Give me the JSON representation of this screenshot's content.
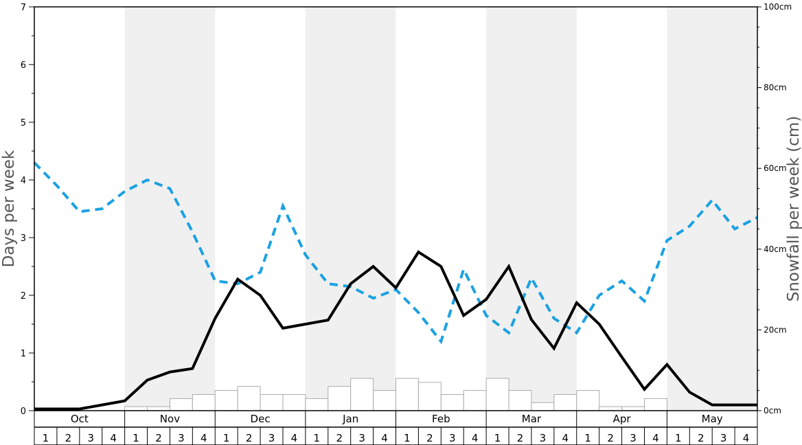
{
  "chart_data": {
    "type": "bar+line",
    "left_axis": {
      "label": "Days per week",
      "ylim": [
        0,
        7
      ],
      "ticks": [
        "0",
        "1",
        "2",
        "3",
        "4",
        "5",
        "6",
        "7"
      ]
    },
    "right_axis": {
      "label": "Snowfall per week (cm)",
      "ylim": [
        0,
        100
      ],
      "ticks": [
        "0cm",
        "20cm",
        "40cm",
        "60cm",
        "80cm",
        "100cm"
      ]
    },
    "months": [
      "Oct",
      "Nov",
      "Dec",
      "Jan",
      "Feb",
      "Mar",
      "Apr",
      "May"
    ],
    "weeks": [
      "1",
      "2",
      "3",
      "4"
    ],
    "colors": {
      "shade": "#f0f0f0",
      "dashed_line": "#1ba1e2",
      "solid_line": "#000000",
      "bars_fill": "#ffffff",
      "bars_stroke": "#aaaaaa",
      "axis_title": "#555555"
    },
    "series": [
      {
        "kind": "bar",
        "axis": "right",
        "values": [
          0,
          0,
          0,
          0,
          1,
          1,
          3,
          4,
          5,
          6,
          4,
          4,
          3,
          6,
          8,
          5,
          8,
          7,
          4,
          5,
          8,
          5,
          2,
          4,
          5,
          1,
          1,
          3,
          0,
          0,
          0,
          0
        ]
      },
      {
        "kind": "line",
        "style": "dashed",
        "axis": "left",
        "values": [
          4.3,
          3.9,
          3.45,
          3.5,
          3.8,
          4.0,
          3.85,
          3.1,
          2.25,
          2.2,
          2.4,
          3.55,
          2.7,
          2.2,
          2.15,
          1.95,
          2.1,
          1.7,
          1.2,
          2.45,
          1.65,
          1.35,
          2.3,
          1.6,
          1.35,
          2.0,
          2.25,
          1.9,
          2.95,
          3.2,
          3.65,
          3.15,
          3.35
        ]
      },
      {
        "kind": "line",
        "style": "solid",
        "axis": "left",
        "values": [
          0.03,
          0.03,
          0.03,
          0.1,
          0.17,
          0.53,
          0.67,
          0.73,
          1.6,
          2.28,
          2.0,
          1.43,
          1.5,
          1.57,
          2.2,
          2.5,
          2.13,
          2.75,
          2.5,
          1.65,
          1.93,
          2.5,
          1.58,
          1.08,
          1.87,
          1.5,
          0.93,
          0.37,
          0.8,
          0.32,
          0.1,
          0.1,
          0.1
        ]
      }
    ]
  }
}
